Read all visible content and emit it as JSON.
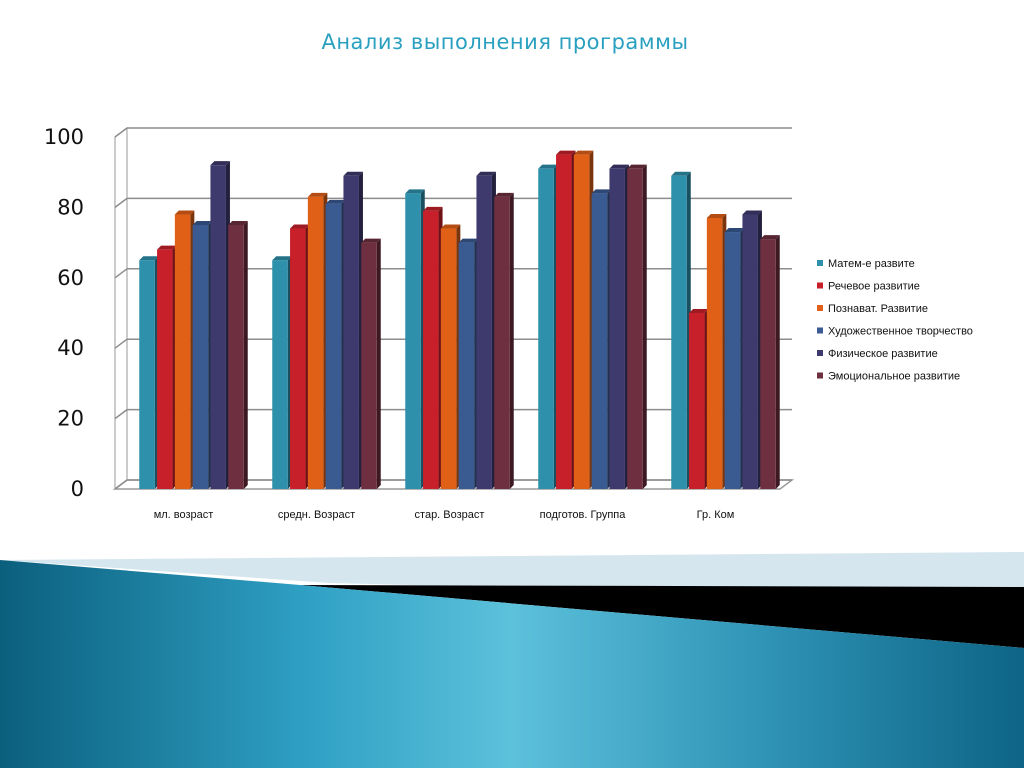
{
  "slide_title": "Анализ выполнения программы",
  "chart_data": {
    "type": "bar",
    "title": "",
    "xlabel": "",
    "ylabel": "",
    "ylim": [
      0,
      100
    ],
    "yticks": [
      "0",
      "20",
      "40",
      "60",
      "80",
      "100"
    ],
    "grid": true,
    "legend_position": "right",
    "categories": [
      "мл. возраст",
      "средн. Возраст",
      "стар. Возраст",
      "подготов. Группа",
      "Гр. Ком"
    ],
    "series": [
      {
        "name": "Матем-е развите",
        "color": "#2e90ab",
        "values": [
          65,
          65,
          84,
          91,
          89
        ]
      },
      {
        "name": "Речевое развитие",
        "color": "#c8202a",
        "values": [
          68,
          74,
          79,
          95,
          50
        ]
      },
      {
        "name": "Познават. Развитие",
        "color": "#e06018",
        "values": [
          78,
          83,
          74,
          95,
          77
        ]
      },
      {
        "name": "Художественное творчество",
        "color": "#3a5a92",
        "values": [
          75,
          81,
          70,
          84,
          73
        ]
      },
      {
        "name": "Физическое развитие",
        "color": "#3e3a6e",
        "values": [
          92,
          89,
          89,
          91,
          78
        ]
      },
      {
        "name": "Эмоциональное развитие",
        "color": "#6e3040",
        "values": [
          75,
          70,
          83,
          91,
          71
        ]
      }
    ]
  }
}
